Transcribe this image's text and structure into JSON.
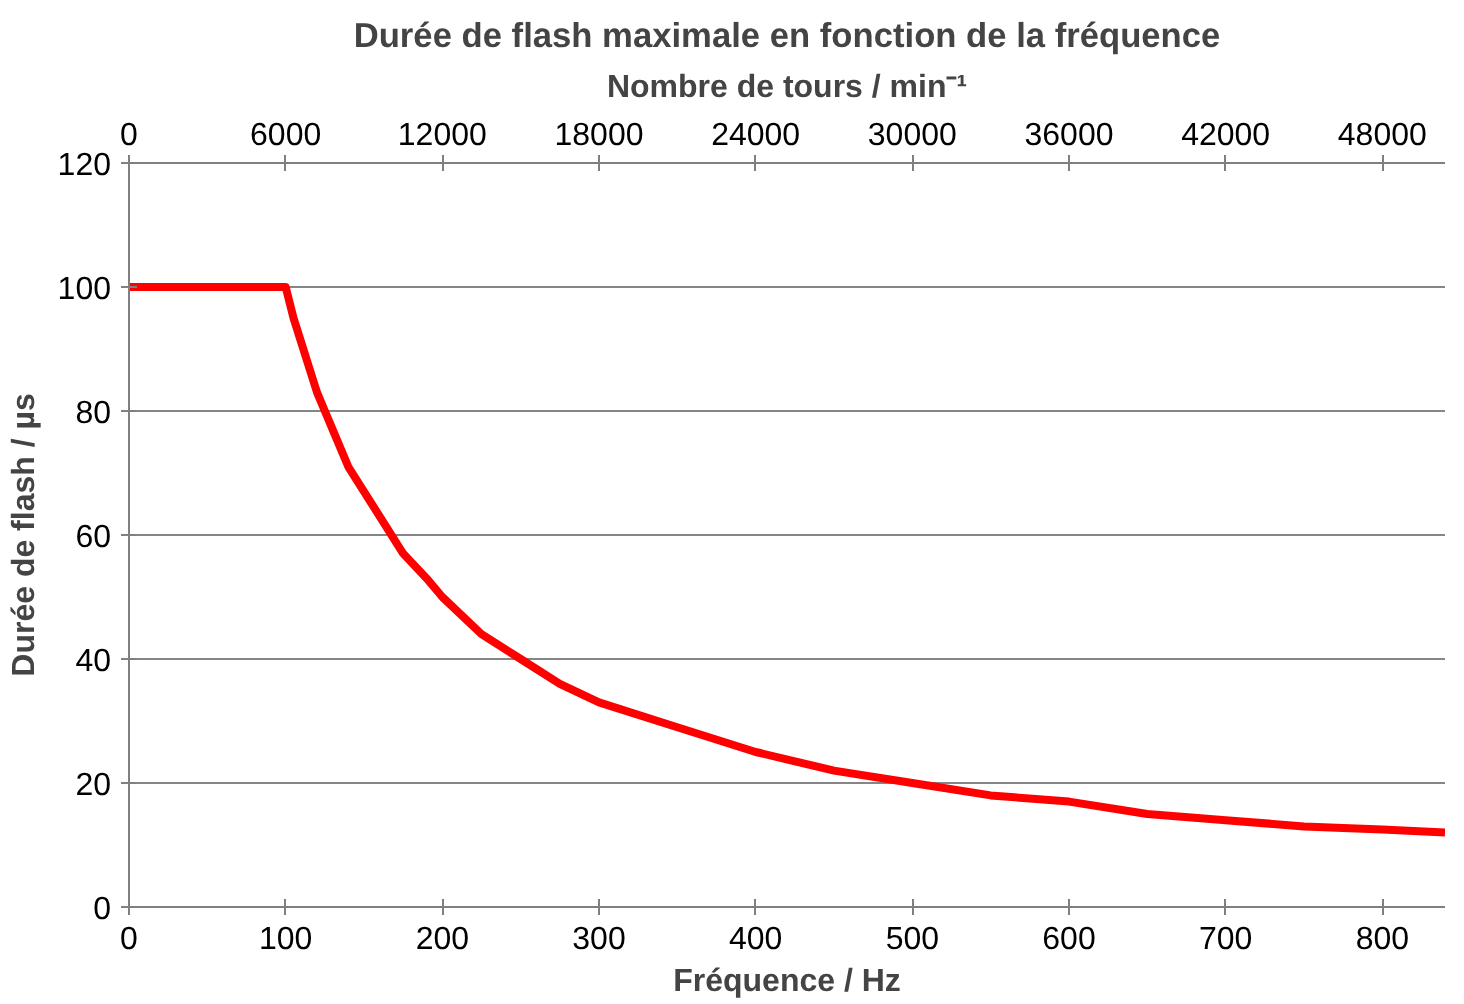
{
  "chart_data": {
    "type": "line",
    "title": "Durée de flash maximale en fonction de la fréquence",
    "xlabel": "Fréquence / Hz",
    "ylabel": "Durée de flash / µs",
    "x2label": "Nombre de tours / min⁻¹",
    "x": [
      0,
      100,
      105,
      110,
      115,
      120,
      125,
      130,
      140,
      150,
      160,
      175,
      190,
      200,
      225,
      250,
      275,
      300,
      350,
      400,
      450,
      500,
      550,
      600,
      650,
      700,
      750,
      800,
      840
    ],
    "series": [
      {
        "color": "#ff0000",
        "values": [
          100,
          100,
          95,
          91,
          87,
          83,
          80,
          77,
          71,
          67,
          63,
          57,
          53,
          50,
          44,
          40,
          36,
          33,
          29,
          25,
          22,
          20,
          18,
          17,
          15,
          14,
          13,
          12.5,
          12
        ]
      }
    ],
    "xlim": [
      0,
      840
    ],
    "xticks": [
      0,
      100,
      200,
      300,
      400,
      500,
      600,
      700,
      800
    ],
    "ylim": [
      0,
      120
    ],
    "yticks": [
      0,
      20,
      40,
      60,
      80,
      100,
      120
    ],
    "x2lim": [
      0,
      50400
    ],
    "x2ticks": [
      0,
      6000,
      12000,
      18000,
      24000,
      30000,
      36000,
      42000,
      48000
    ],
    "grid": "y",
    "marker": "none",
    "line_style": "solid"
  }
}
